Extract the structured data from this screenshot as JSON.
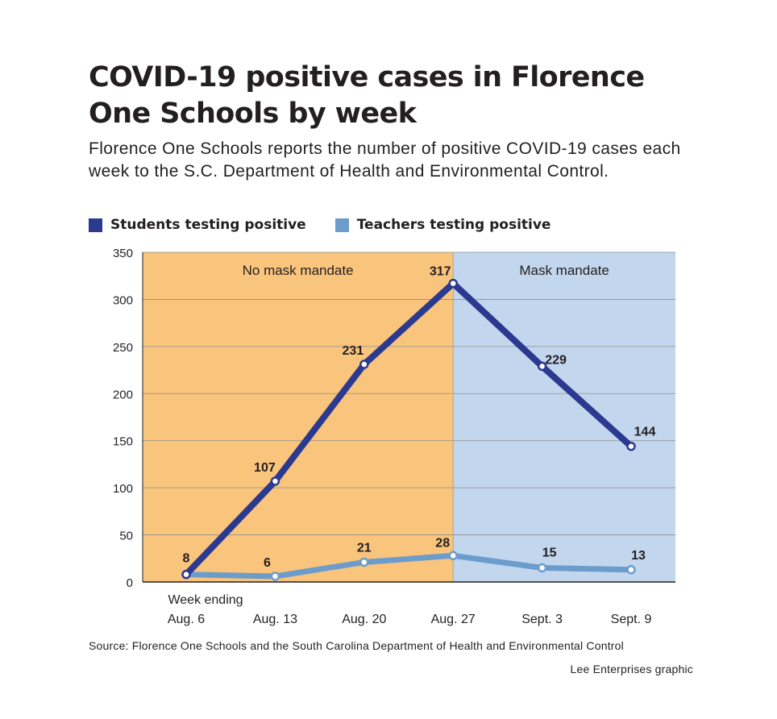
{
  "chart_data": {
    "type": "line",
    "title": "COVID-19 positive cases in Florence One Schools by week",
    "subtitle": "Florence One Schools reports the number of positive COVID-19 cases each week to the S.C. Department of Health and Environmental Control.",
    "xlabel": "Week ending",
    "ylabel": "",
    "categories": [
      "Aug. 6",
      "Aug. 13",
      "Aug. 20",
      "Aug. 27",
      "Sept. 3",
      "Sept. 9"
    ],
    "ylim": [
      0,
      350
    ],
    "yticks": [
      0,
      50,
      100,
      150,
      200,
      250,
      300,
      350
    ],
    "grid": true,
    "legend_position": "top-left",
    "series": [
      {
        "name": "Students testing positive",
        "color": "#2b3990",
        "values": [
          8,
          107,
          231,
          317,
          229,
          144
        ]
      },
      {
        "name": "Teachers testing positive",
        "color": "#6c9ccc",
        "values": [
          8,
          6,
          21,
          28,
          15,
          13
        ]
      }
    ],
    "regions": [
      {
        "label": "No mask mandate",
        "color": "#f9c47c",
        "from_category": "Aug. 6",
        "to_category": "Aug. 27"
      },
      {
        "label": "Mask mandate",
        "color": "#c2d6ee",
        "from_category": "Aug. 27",
        "to_category": "Sept. 9"
      }
    ]
  },
  "source": "Source: Florence One Schools and the South Carolina Department of Health and Environmental Control",
  "credit": "Lee Enterprises graphic"
}
